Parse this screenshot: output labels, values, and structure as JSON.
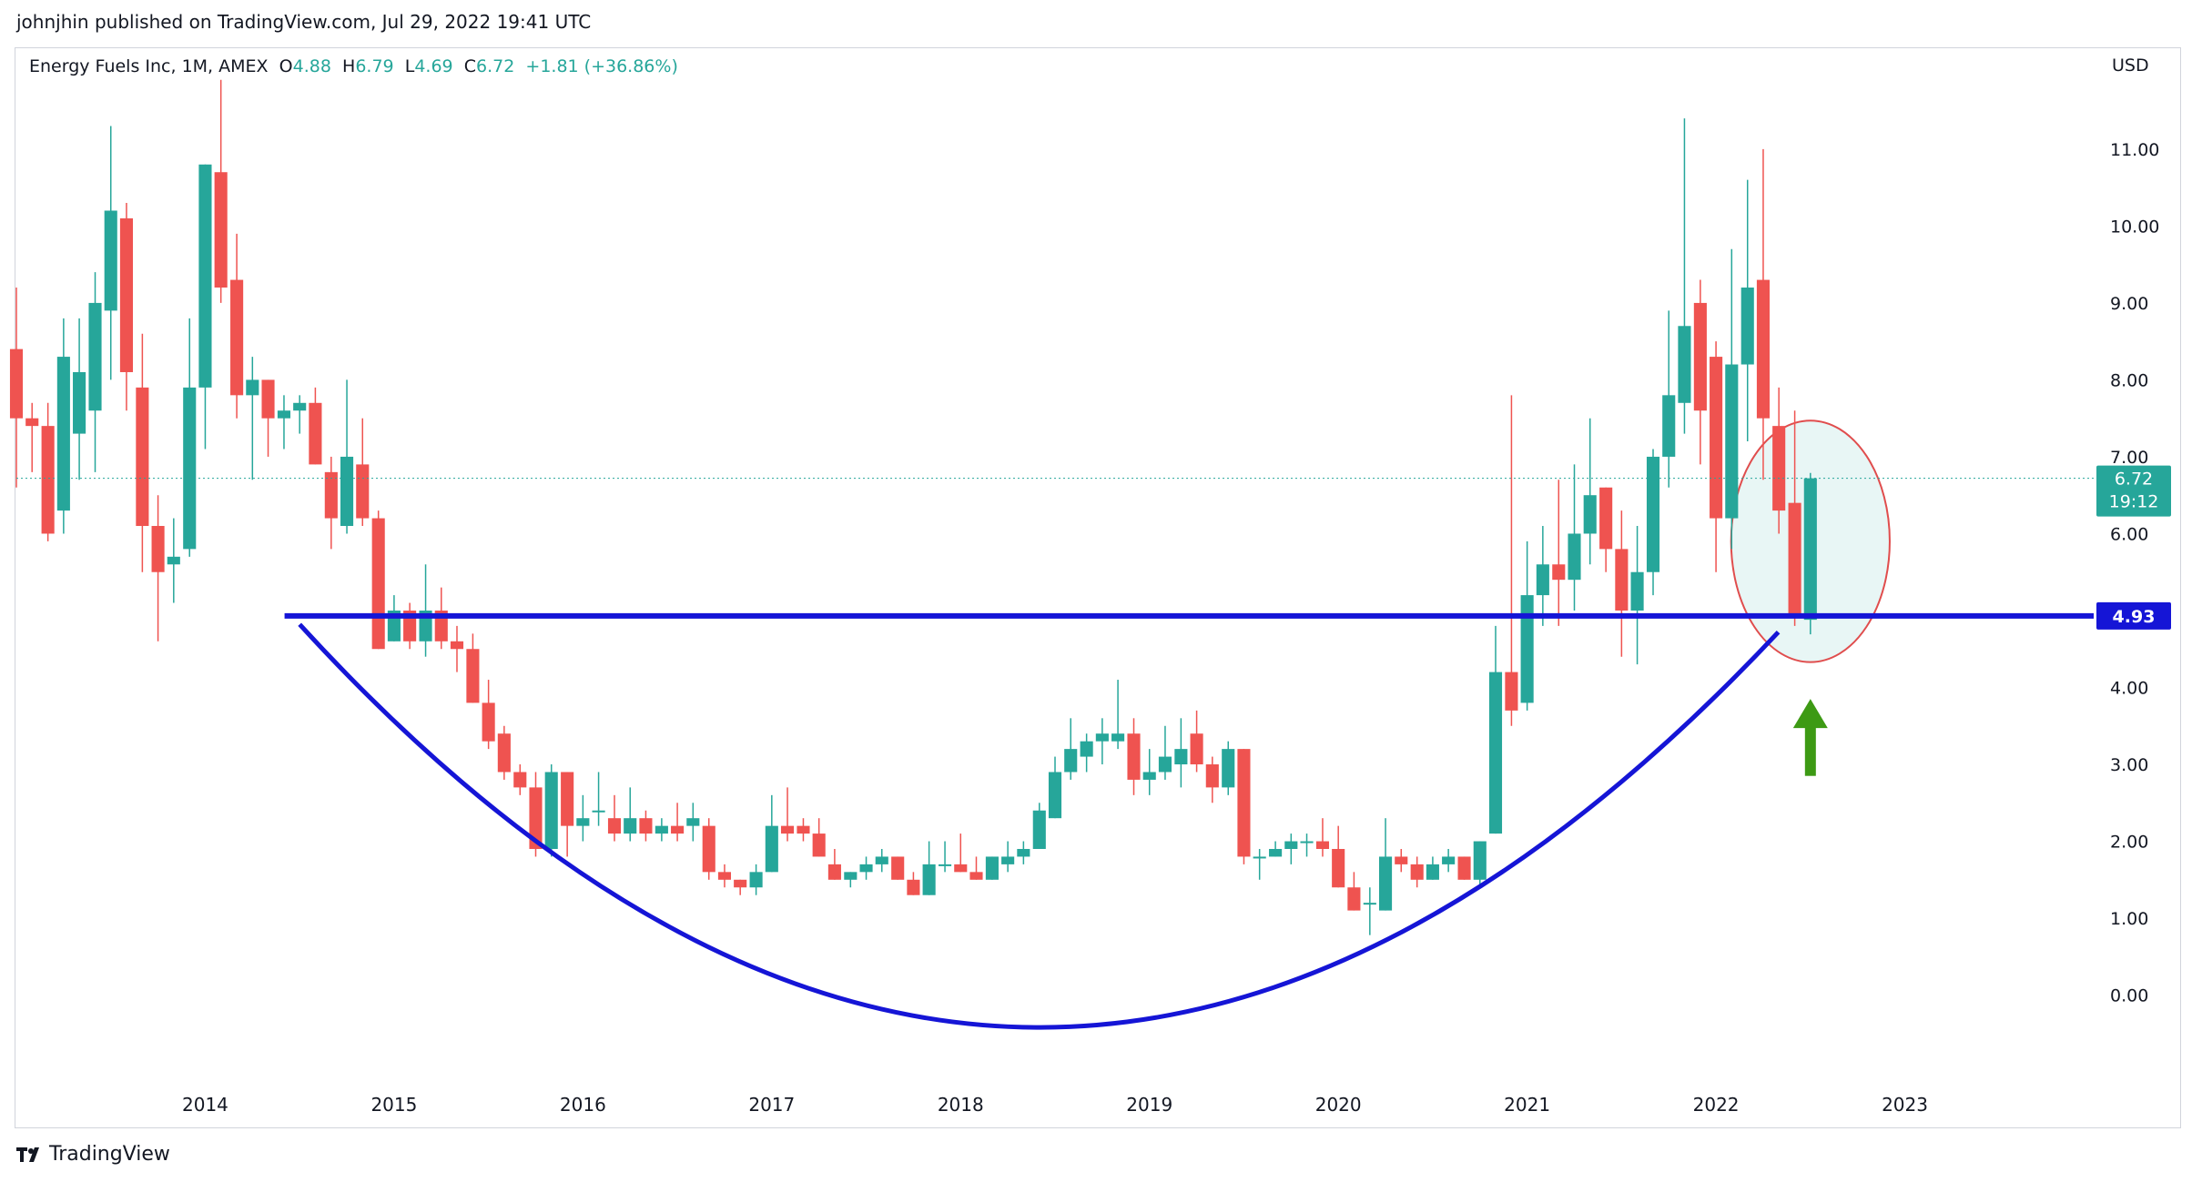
{
  "header": {
    "published_text": "johnjhin published on TradingView.com, Jul 29, 2022 19:41 UTC"
  },
  "legend": {
    "symbol": "Energy Fuels Inc, 1M, AMEX",
    "o_label": "O",
    "o_value": "4.88",
    "h_label": "H",
    "h_value": "6.79",
    "l_label": "L",
    "l_value": "4.69",
    "c_label": "C",
    "c_value": "6.72",
    "change": "+1.81 (+36.86%)"
  },
  "footer": {
    "brand": "TradingView"
  },
  "colors": {
    "up": "#26a69a",
    "down": "#ef5350",
    "line": "#1515d6",
    "ellipse": "#e04d4d",
    "ellipse_fill": "#e8f6f5",
    "arrow": "#3d9a14",
    "price_tag": "#26a69a"
  },
  "chart_data": {
    "type": "candlestick",
    "currency_label": "USD",
    "y_ticks": [
      "0.00",
      "1.00",
      "2.00",
      "3.00",
      "4.00",
      "5.00",
      "6.00",
      "7.00",
      "8.00",
      "9.00",
      "10.00",
      "11.00"
    ],
    "ylim": [
      -1.2,
      12.3
    ],
    "x_ticks": [
      "2014",
      "2015",
      "2016",
      "2017",
      "2018",
      "2019",
      "2020",
      "2021",
      "2022",
      "2023"
    ],
    "xlim": [
      2013.0,
      2024.0
    ],
    "last_price": {
      "value": 6.72,
      "label": "6.72",
      "countdown": "19:12"
    },
    "support_line": {
      "value": 4.93,
      "label": "4.93"
    },
    "cup_curve": {
      "start": [
        2014.5,
        4.82
      ],
      "bottom": [
        2018.4,
        -0.42
      ],
      "end": [
        2022.33,
        4.72
      ]
    },
    "annotations": [
      {
        "type": "ellipse",
        "center": [
          2022.5,
          5.9
        ],
        "rx_years": 0.42,
        "ry_value": 1.57
      },
      {
        "type": "arrow",
        "x": 2022.5,
        "from": 2.85,
        "to": 3.85,
        "direction": "up"
      }
    ],
    "candles": [
      [
        2013.0,
        8.4,
        9.2,
        6.6,
        7.5
      ],
      [
        2013.083,
        7.5,
        7.7,
        6.8,
        7.4
      ],
      [
        2013.167,
        7.4,
        7.7,
        5.9,
        6.0
      ],
      [
        2013.25,
        6.3,
        8.8,
        6.0,
        8.3
      ],
      [
        2013.333,
        7.3,
        8.8,
        6.7,
        8.1
      ],
      [
        2013.417,
        7.6,
        9.4,
        6.8,
        9.0
      ],
      [
        2013.5,
        8.9,
        11.3,
        8.0,
        10.2
      ],
      [
        2013.583,
        10.1,
        10.3,
        7.6,
        8.1
      ],
      [
        2013.667,
        7.9,
        8.6,
        5.5,
        6.1
      ],
      [
        2013.75,
        6.1,
        6.5,
        4.6,
        5.5
      ],
      [
        2013.833,
        5.6,
        6.2,
        5.1,
        5.7
      ],
      [
        2013.917,
        5.8,
        8.8,
        5.7,
        7.9
      ],
      [
        2014.0,
        7.9,
        10.8,
        7.1,
        10.8
      ],
      [
        2014.083,
        10.7,
        11.9,
        9.0,
        9.2
      ],
      [
        2014.167,
        9.3,
        9.9,
        7.5,
        7.8
      ],
      [
        2014.25,
        7.8,
        8.3,
        6.7,
        8.0
      ],
      [
        2014.333,
        8.0,
        8.0,
        7.0,
        7.5
      ],
      [
        2014.417,
        7.5,
        7.8,
        7.1,
        7.6
      ],
      [
        2014.5,
        7.6,
        7.8,
        7.3,
        7.7
      ],
      [
        2014.583,
        7.7,
        7.9,
        6.9,
        6.9
      ],
      [
        2014.667,
        6.8,
        7.0,
        5.8,
        6.2
      ],
      [
        2014.75,
        6.1,
        8.0,
        6.0,
        7.0
      ],
      [
        2014.833,
        6.9,
        7.5,
        6.1,
        6.2
      ],
      [
        2014.917,
        6.2,
        6.3,
        4.5,
        4.5
      ],
      [
        2015.0,
        4.6,
        5.2,
        4.6,
        5.0
      ],
      [
        2015.083,
        5.0,
        5.1,
        4.5,
        4.6
      ],
      [
        2015.167,
        4.6,
        5.6,
        4.4,
        5.0
      ],
      [
        2015.25,
        5.0,
        5.3,
        4.5,
        4.6
      ],
      [
        2015.333,
        4.6,
        4.8,
        4.2,
        4.5
      ],
      [
        2015.417,
        4.5,
        4.7,
        3.8,
        3.8
      ],
      [
        2015.5,
        3.8,
        4.1,
        3.2,
        3.3
      ],
      [
        2015.583,
        3.4,
        3.5,
        2.8,
        2.9
      ],
      [
        2015.667,
        2.9,
        3.0,
        2.6,
        2.7
      ],
      [
        2015.75,
        2.7,
        2.9,
        1.8,
        1.9
      ],
      [
        2015.833,
        1.9,
        3.0,
        1.8,
        2.9
      ],
      [
        2015.917,
        2.9,
        2.9,
        1.8,
        2.2
      ],
      [
        2016.0,
        2.2,
        2.6,
        2.0,
        2.3
      ],
      [
        2016.083,
        2.4,
        2.9,
        2.2,
        2.4
      ],
      [
        2016.167,
        2.3,
        2.6,
        2.0,
        2.1
      ],
      [
        2016.25,
        2.1,
        2.7,
        2.0,
        2.3
      ],
      [
        2016.333,
        2.3,
        2.4,
        2.0,
        2.1
      ],
      [
        2016.417,
        2.1,
        2.3,
        2.0,
        2.2
      ],
      [
        2016.5,
        2.2,
        2.5,
        2.0,
        2.1
      ],
      [
        2016.583,
        2.2,
        2.5,
        2.0,
        2.3
      ],
      [
        2016.667,
        2.2,
        2.3,
        1.5,
        1.6
      ],
      [
        2016.75,
        1.6,
        1.7,
        1.4,
        1.5
      ],
      [
        2016.833,
        1.5,
        1.5,
        1.3,
        1.4
      ],
      [
        2016.917,
        1.4,
        1.7,
        1.3,
        1.6
      ],
      [
        2017.0,
        1.6,
        2.6,
        1.6,
        2.2
      ],
      [
        2017.083,
        2.2,
        2.7,
        2.0,
        2.1
      ],
      [
        2017.167,
        2.2,
        2.3,
        2.0,
        2.1
      ],
      [
        2017.25,
        2.1,
        2.3,
        1.8,
        1.8
      ],
      [
        2017.333,
        1.7,
        1.9,
        1.5,
        1.5
      ],
      [
        2017.417,
        1.5,
        1.6,
        1.4,
        1.6
      ],
      [
        2017.5,
        1.6,
        1.8,
        1.5,
        1.7
      ],
      [
        2017.583,
        1.7,
        1.9,
        1.6,
        1.8
      ],
      [
        2017.667,
        1.8,
        1.8,
        1.5,
        1.5
      ],
      [
        2017.75,
        1.5,
        1.6,
        1.3,
        1.3
      ],
      [
        2017.833,
        1.3,
        2.0,
        1.3,
        1.7
      ],
      [
        2017.917,
        1.7,
        2.0,
        1.6,
        1.7
      ],
      [
        2018.0,
        1.7,
        2.1,
        1.6,
        1.6
      ],
      [
        2018.083,
        1.6,
        1.8,
        1.5,
        1.5
      ],
      [
        2018.167,
        1.5,
        1.8,
        1.5,
        1.8
      ],
      [
        2018.25,
        1.7,
        2.0,
        1.6,
        1.8
      ],
      [
        2018.333,
        1.8,
        2.0,
        1.7,
        1.9
      ],
      [
        2018.417,
        1.9,
        2.5,
        1.9,
        2.4
      ],
      [
        2018.5,
        2.3,
        3.1,
        2.3,
        2.9
      ],
      [
        2018.583,
        2.9,
        3.6,
        2.8,
        3.2
      ],
      [
        2018.667,
        3.1,
        3.4,
        2.9,
        3.3
      ],
      [
        2018.75,
        3.3,
        3.6,
        3.0,
        3.4
      ],
      [
        2018.833,
        3.3,
        4.1,
        3.2,
        3.4
      ],
      [
        2018.917,
        3.4,
        3.6,
        2.6,
        2.8
      ],
      [
        2019.0,
        2.8,
        3.2,
        2.6,
        2.9
      ],
      [
        2019.083,
        2.9,
        3.5,
        2.8,
        3.1
      ],
      [
        2019.167,
        3.0,
        3.6,
        2.7,
        3.2
      ],
      [
        2019.25,
        3.4,
        3.7,
        2.9,
        3.0
      ],
      [
        2019.333,
        3.0,
        3.1,
        2.5,
        2.7
      ],
      [
        2019.417,
        2.7,
        3.3,
        2.6,
        3.2
      ],
      [
        2019.5,
        3.2,
        3.2,
        1.7,
        1.8
      ],
      [
        2019.583,
        1.8,
        1.9,
        1.5,
        1.8
      ],
      [
        2019.667,
        1.8,
        2.0,
        1.8,
        1.9
      ],
      [
        2019.75,
        1.9,
        2.1,
        1.7,
        2.0
      ],
      [
        2019.833,
        2.0,
        2.1,
        1.8,
        2.0
      ],
      [
        2019.917,
        2.0,
        2.3,
        1.8,
        1.9
      ],
      [
        2020.0,
        1.9,
        2.2,
        1.4,
        1.4
      ],
      [
        2020.083,
        1.4,
        1.6,
        1.1,
        1.1
      ],
      [
        2020.167,
        1.2,
        1.4,
        0.78,
        1.2
      ],
      [
        2020.25,
        1.1,
        2.3,
        1.1,
        1.8
      ],
      [
        2020.333,
        1.8,
        1.9,
        1.6,
        1.7
      ],
      [
        2020.417,
        1.7,
        1.8,
        1.4,
        1.5
      ],
      [
        2020.5,
        1.5,
        1.8,
        1.5,
        1.7
      ],
      [
        2020.583,
        1.7,
        1.9,
        1.6,
        1.8
      ],
      [
        2020.667,
        1.8,
        1.8,
        1.5,
        1.5
      ],
      [
        2020.75,
        1.5,
        2.0,
        1.4,
        2.0
      ],
      [
        2020.833,
        2.1,
        4.8,
        2.1,
        4.2
      ],
      [
        2020.917,
        4.2,
        7.8,
        3.5,
        3.7
      ],
      [
        2021.0,
        3.8,
        5.9,
        3.7,
        5.2
      ],
      [
        2021.083,
        5.2,
        6.1,
        4.8,
        5.6
      ],
      [
        2021.167,
        5.6,
        6.7,
        4.8,
        5.4
      ],
      [
        2021.25,
        5.4,
        6.9,
        5.0,
        6.0
      ],
      [
        2021.333,
        6.0,
        7.5,
        5.6,
        6.5
      ],
      [
        2021.417,
        6.6,
        6.6,
        5.5,
        5.8
      ],
      [
        2021.5,
        5.8,
        6.3,
        4.4,
        5.0
      ],
      [
        2021.583,
        5.0,
        6.1,
        4.3,
        5.5
      ],
      [
        2021.667,
        5.5,
        7.1,
        5.2,
        7.0
      ],
      [
        2021.75,
        7.0,
        8.9,
        6.6,
        7.8
      ],
      [
        2021.833,
        7.7,
        11.4,
        7.3,
        8.7
      ],
      [
        2021.917,
        9.0,
        9.3,
        6.9,
        7.6
      ],
      [
        2022.0,
        8.3,
        8.5,
        5.5,
        6.2
      ],
      [
        2022.083,
        6.2,
        9.7,
        5.8,
        8.2
      ],
      [
        2022.167,
        8.2,
        10.6,
        7.2,
        9.2
      ],
      [
        2022.25,
        9.3,
        11.0,
        6.7,
        7.5
      ],
      [
        2022.333,
        7.4,
        7.9,
        6.0,
        6.3
      ],
      [
        2022.417,
        6.4,
        7.6,
        4.8,
        4.9
      ],
      [
        2022.5,
        4.88,
        6.79,
        4.69,
        6.72
      ]
    ]
  }
}
